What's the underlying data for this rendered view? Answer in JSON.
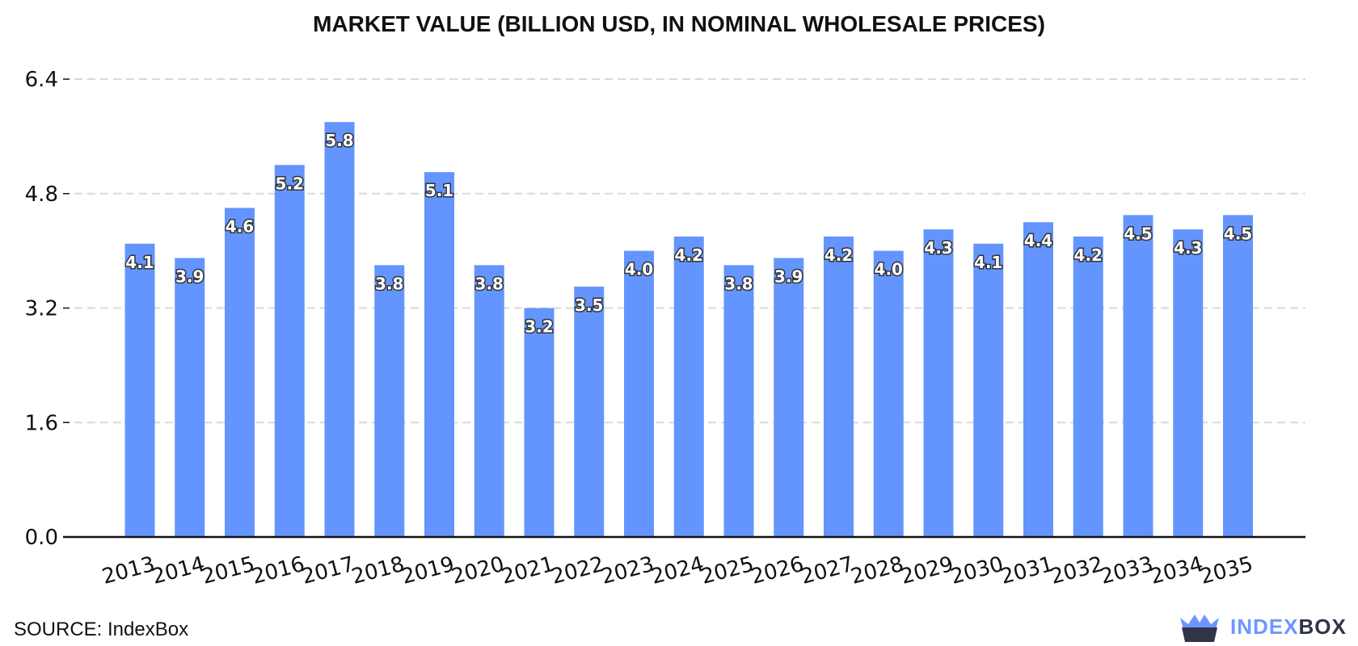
{
  "chart_data": {
    "type": "bar",
    "title": "MARKET VALUE (BILLION USD, IN NOMINAL WHOLESALE PRICES)",
    "xlabel": "",
    "ylabel": "",
    "categories": [
      "2013",
      "2014",
      "2015",
      "2016",
      "2017",
      "2018",
      "2019",
      "2020",
      "2021",
      "2022",
      "2023",
      "2024",
      "2025",
      "2026",
      "2027",
      "2028",
      "2029",
      "2030",
      "2031",
      "2032",
      "2033",
      "2034",
      "2035"
    ],
    "values": [
      4.1,
      3.9,
      4.6,
      5.2,
      5.8,
      3.8,
      5.1,
      3.8,
      3.2,
      3.5,
      4.0,
      4.2,
      3.8,
      3.9,
      4.2,
      4.0,
      4.3,
      4.1,
      4.4,
      4.2,
      4.5,
      4.3,
      4.5
    ],
    "value_labels": [
      "4.1",
      "3.9",
      "4.6",
      "5.2",
      "5.8",
      "3.8",
      "5.1",
      "3.8",
      "3.2",
      "3.5",
      "4.0",
      "4.2",
      "3.8",
      "3.9",
      "4.2",
      "4.0",
      "4.3",
      "4.1",
      "4.4",
      "4.2",
      "4.5",
      "4.3",
      "4.5"
    ],
    "yticks": [
      "0.0",
      "1.6",
      "3.2",
      "4.8",
      "6.4"
    ],
    "ytick_values": [
      0,
      1.6,
      3.2,
      4.8,
      6.4
    ],
    "ylim": [
      0,
      6.4
    ],
    "grid": true,
    "legend": "none",
    "bar_color": "#6495fe",
    "grid_color": "#d9d9d9",
    "axis_color": "#111111"
  },
  "footer": {
    "source": "SOURCE: IndexBox",
    "brand_part1": "INDEX",
    "brand_part2": "BOX"
  }
}
